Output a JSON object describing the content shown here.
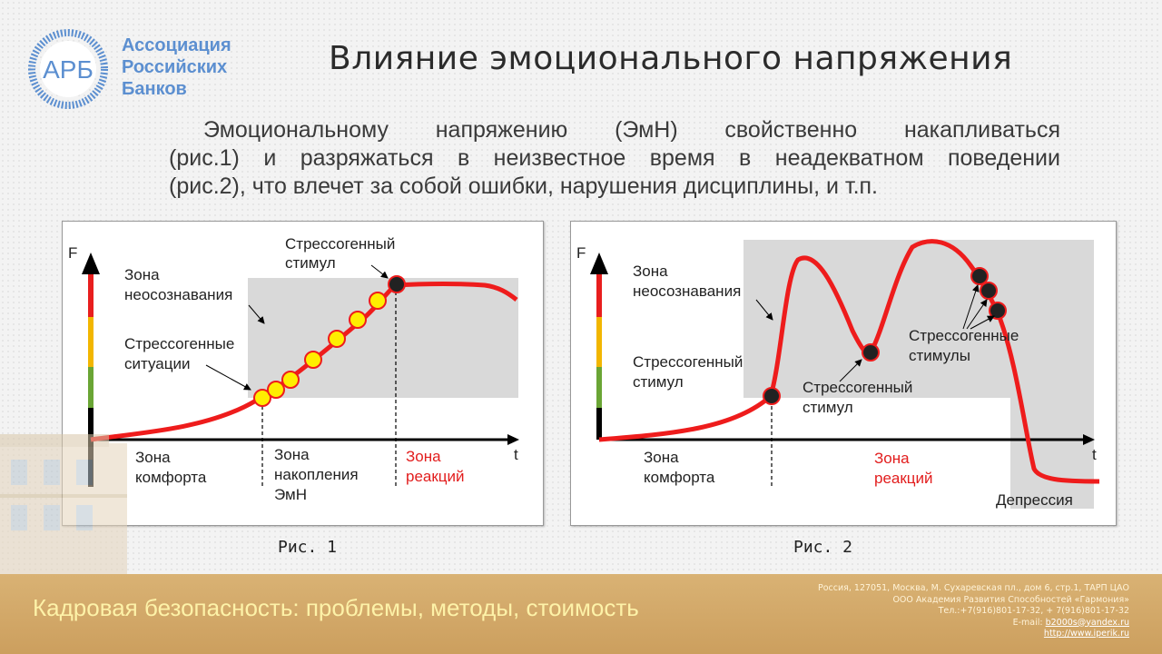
{
  "logo": {
    "abbr": "АРБ",
    "lines": [
      "Ассоциация",
      "Российских",
      "Банков"
    ]
  },
  "title": "Влияние эмоционального напряжения",
  "intro": [
    "Эмоциональному напряжению (ЭмН) свойственно накапливаться",
    "(рис.1) и разряжаться в неизвестное время в неадекватном поведении",
    "(рис.2), что влечет за собой ошибки, нарушения дисциплины, и т.п."
  ],
  "fig1": {
    "caption": "Рис. 1",
    "y_axis": "F",
    "x_axis": "t",
    "zone_unaware": [
      "Зона",
      "неосознавания"
    ],
    "stress_situations": [
      "Стрессогенные",
      "ситуации"
    ],
    "stress_stimulus": [
      "Стрессогенный",
      "стимул"
    ],
    "zone_comfort": [
      "Зона",
      "комфорта"
    ],
    "zone_accumulation": [
      "Зона",
      "накопления",
      "ЭмН"
    ],
    "zone_reaction": [
      "Зона",
      "реакций"
    ]
  },
  "fig2": {
    "caption": "Рис. 2",
    "y_axis": "F",
    "x_axis": "t",
    "zone_unaware": [
      "Зона",
      "неосознавания"
    ],
    "stress_stimulus_left": [
      "Стрессогенный",
      "стимул"
    ],
    "stress_stimulus_mid": [
      "Стрессогенный",
      "стимул"
    ],
    "stress_stimuli": [
      "Стрессогенные",
      "стимулы"
    ],
    "zone_comfort": [
      "Зона",
      "комфорта"
    ],
    "zone_reaction": [
      "Зона",
      "реакций"
    ],
    "depression": "Депрессия"
  },
  "footer": {
    "title": "Кадровая безопасность: проблемы, методы, стоимость",
    "address": "Россия, 127051, Москва, М. Сухаревская пл., дом 6, стр.1, ТАРП ЦАО",
    "org": "ООО Академия Развития Способностей «Гармония»",
    "phone": "Тел.:+7(916)801-17-32, + 7(916)801-17-32",
    "email_label": "E-mail:",
    "email": "b2000s@yandex.ru",
    "site": "http://www.iperik.ru"
  },
  "colors": {
    "curve": "#ee1c1c",
    "dot_fill": "#ffee00",
    "zone_fill": "#d9d9d9",
    "logo_blue": "#5c8fd0",
    "reaction_text": "#e21d1d"
  }
}
